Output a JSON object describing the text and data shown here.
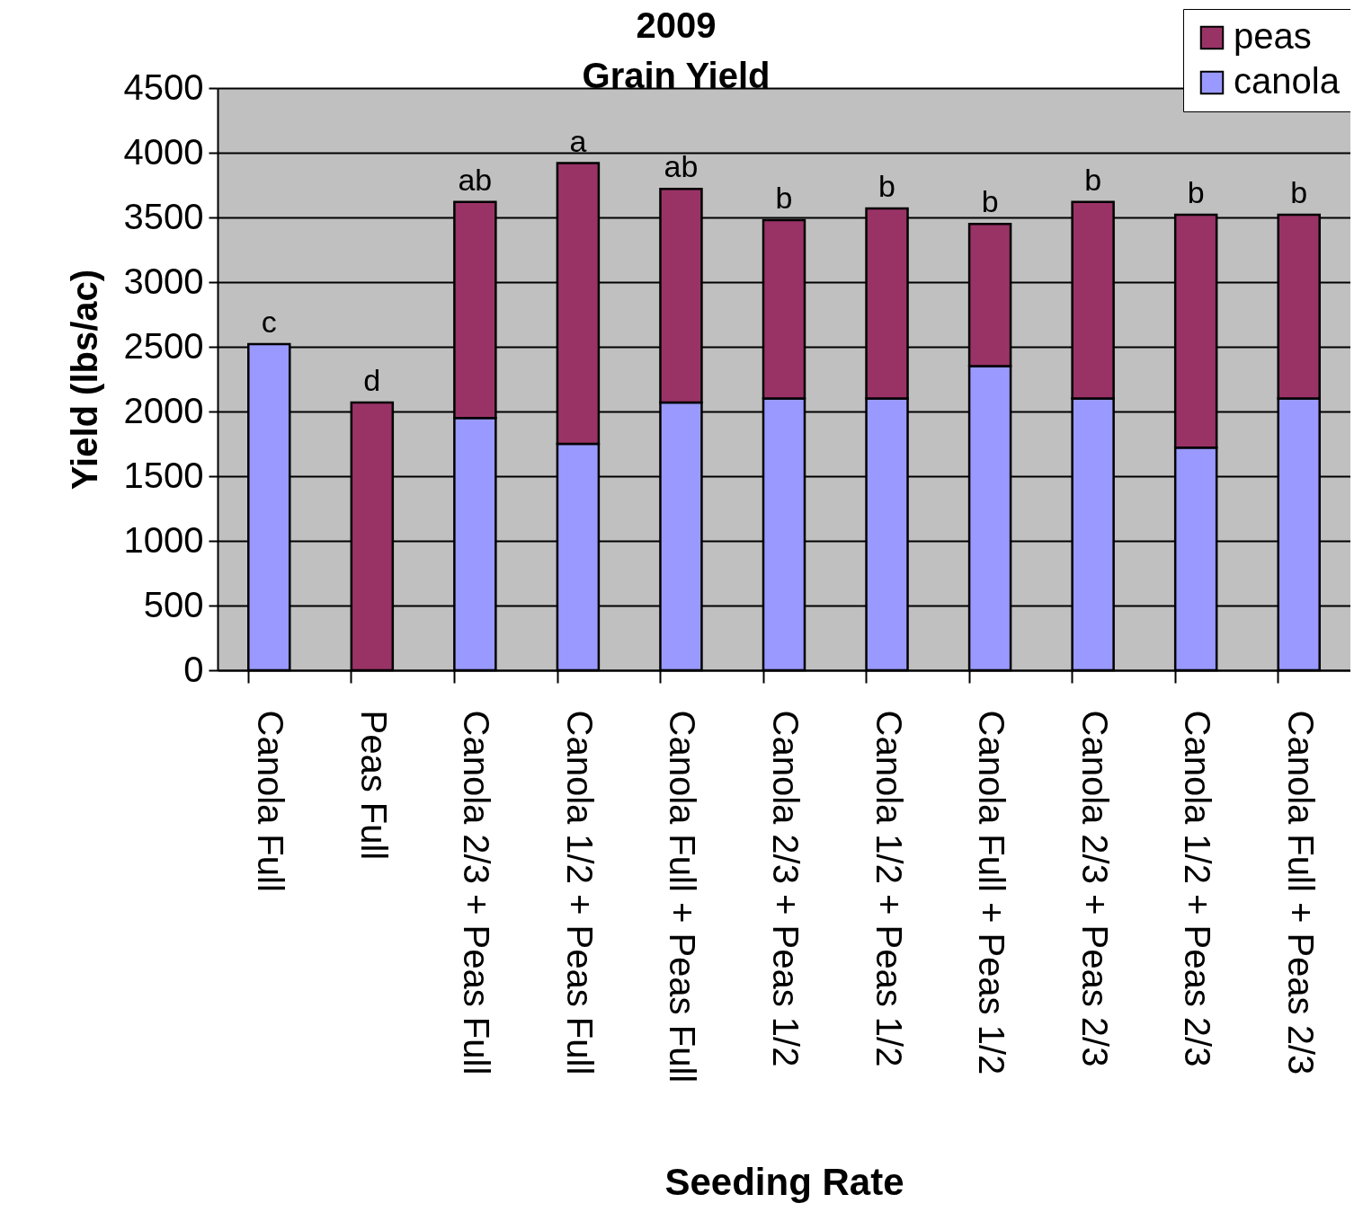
{
  "chart_data": {
    "type": "bar",
    "title": "2009",
    "subtitle": "Grain Yield",
    "xlabel": "Seeding Rate",
    "ylabel": "Yield (lbs/ac)",
    "categories": [
      "Canola Full",
      "Peas Full",
      "Canola 2/3 + Peas Full",
      "Canola 1/2 + Peas Full",
      "Canola Full + Peas Full",
      "Canola 2/3 + Peas 1/2",
      "Canola 1/2 + Peas 1/2",
      "Canola Full + Peas 1/2",
      "Canola 2/3 + Peas 2/3",
      "Canola 1/2 + Peas 2/3",
      "Canola Full + Peas 2/3"
    ],
    "series": [
      {
        "name": "canola",
        "color": "#9999ff",
        "values": [
          2520,
          null,
          1950,
          1750,
          2070,
          2100,
          2100,
          2350,
          2100,
          1720,
          2100
        ]
      },
      {
        "name": "peas",
        "color": "#993366",
        "values": [
          null,
          2070,
          1670,
          2170,
          1650,
          1380,
          1470,
          1100,
          1520,
          1800,
          1420
        ]
      }
    ],
    "stacked": true,
    "ylim": [
      0,
      4500
    ],
    "yticks": [
      0,
      500,
      1000,
      1500,
      2000,
      2500,
      3000,
      3500,
      4000,
      4500
    ],
    "grid": "y",
    "legend": "top right",
    "annotations": [
      "c",
      "d",
      "ab",
      "a",
      "ab",
      "b",
      "b",
      "b",
      "b",
      "b",
      "b"
    ]
  }
}
